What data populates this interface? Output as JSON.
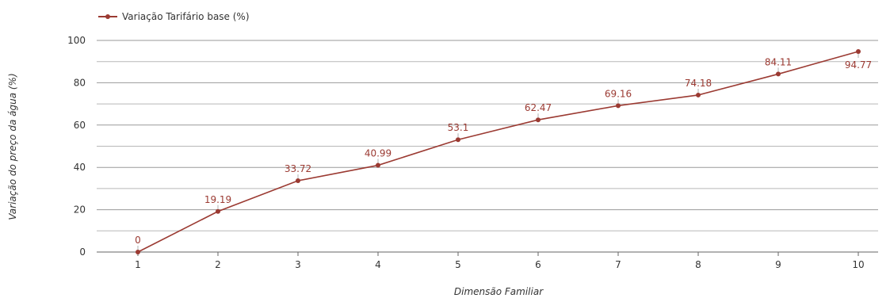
{
  "chart_data": {
    "type": "line",
    "title": "",
    "xlabel": "Dimensão Familiar",
    "ylabel": "Variação do preço da água (%)",
    "x": [
      1,
      2,
      3,
      4,
      5,
      6,
      7,
      8,
      9,
      10
    ],
    "x_tick_labels": [
      "1",
      "2",
      "3",
      "4",
      "5",
      "6",
      "7",
      "8",
      "9",
      "10"
    ],
    "y_ticks": [
      0,
      20,
      40,
      60,
      80,
      100
    ],
    "y_tick_labels": [
      "0",
      "20",
      "40",
      "60",
      "80",
      "100"
    ],
    "ylim": [
      0,
      100
    ],
    "grid": true,
    "legend_position": "top-left",
    "series": [
      {
        "name": "Variação Tarifário base (%)",
        "color": "#9b3a32",
        "values": [
          0,
          19.19,
          33.72,
          40.99,
          53.1,
          62.47,
          69.16,
          74.18,
          84.11,
          94.77
        ],
        "labels": [
          "0",
          "19.19",
          "33.72",
          "40.99",
          "53.1",
          "62.47",
          "69.16",
          "74.18",
          "84.11",
          "94.77"
        ]
      }
    ]
  }
}
